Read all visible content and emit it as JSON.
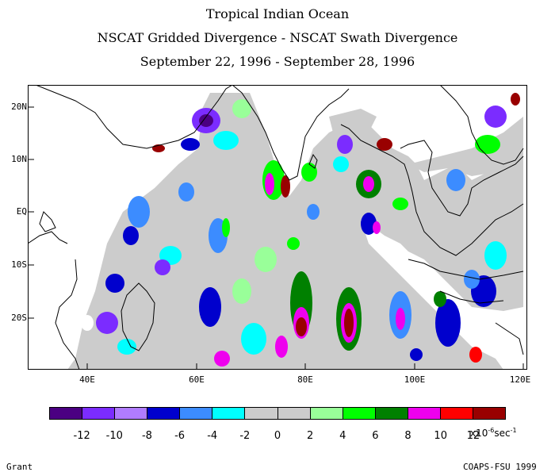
{
  "title": {
    "line1": "Tropical Indian Ocean",
    "line2": "NSCAT Gridded Divergence - NSCAT Swath Divergence",
    "line3": "September 22, 1996 - September 28, 1996"
  },
  "map": {
    "x_ticks": [
      "40E",
      "60E",
      "80E",
      "100E",
      "120E"
    ],
    "y_ticks": [
      "20N",
      "10N",
      "EQ",
      "10S",
      "20S"
    ],
    "ocean_colors": {
      "land": "#ffffff",
      "neutral": "#cccccc",
      "coast": "#000000"
    }
  },
  "colorbar": {
    "colors": [
      "#4b0082",
      "#7b2cff",
      "#b07cff",
      "#0000cd",
      "#3c8cff",
      "#00ffff",
      "#cccccc",
      "#cccccc",
      "#99ff99",
      "#00ff00",
      "#008000",
      "#ee00ee",
      "#ff0000",
      "#990000"
    ],
    "labels": [
      "-12",
      "-10",
      "-8",
      "-6",
      "-4",
      "-2",
      "0",
      "2",
      "4",
      "6",
      "8",
      "10",
      "12"
    ],
    "unit_prefix": "x10",
    "unit_exp": "-6",
    "unit_suffix": "sec",
    "unit_suffix_exp": "-1"
  },
  "footer": {
    "left": "Grant",
    "right": "COAPS-FSU 1999"
  }
}
